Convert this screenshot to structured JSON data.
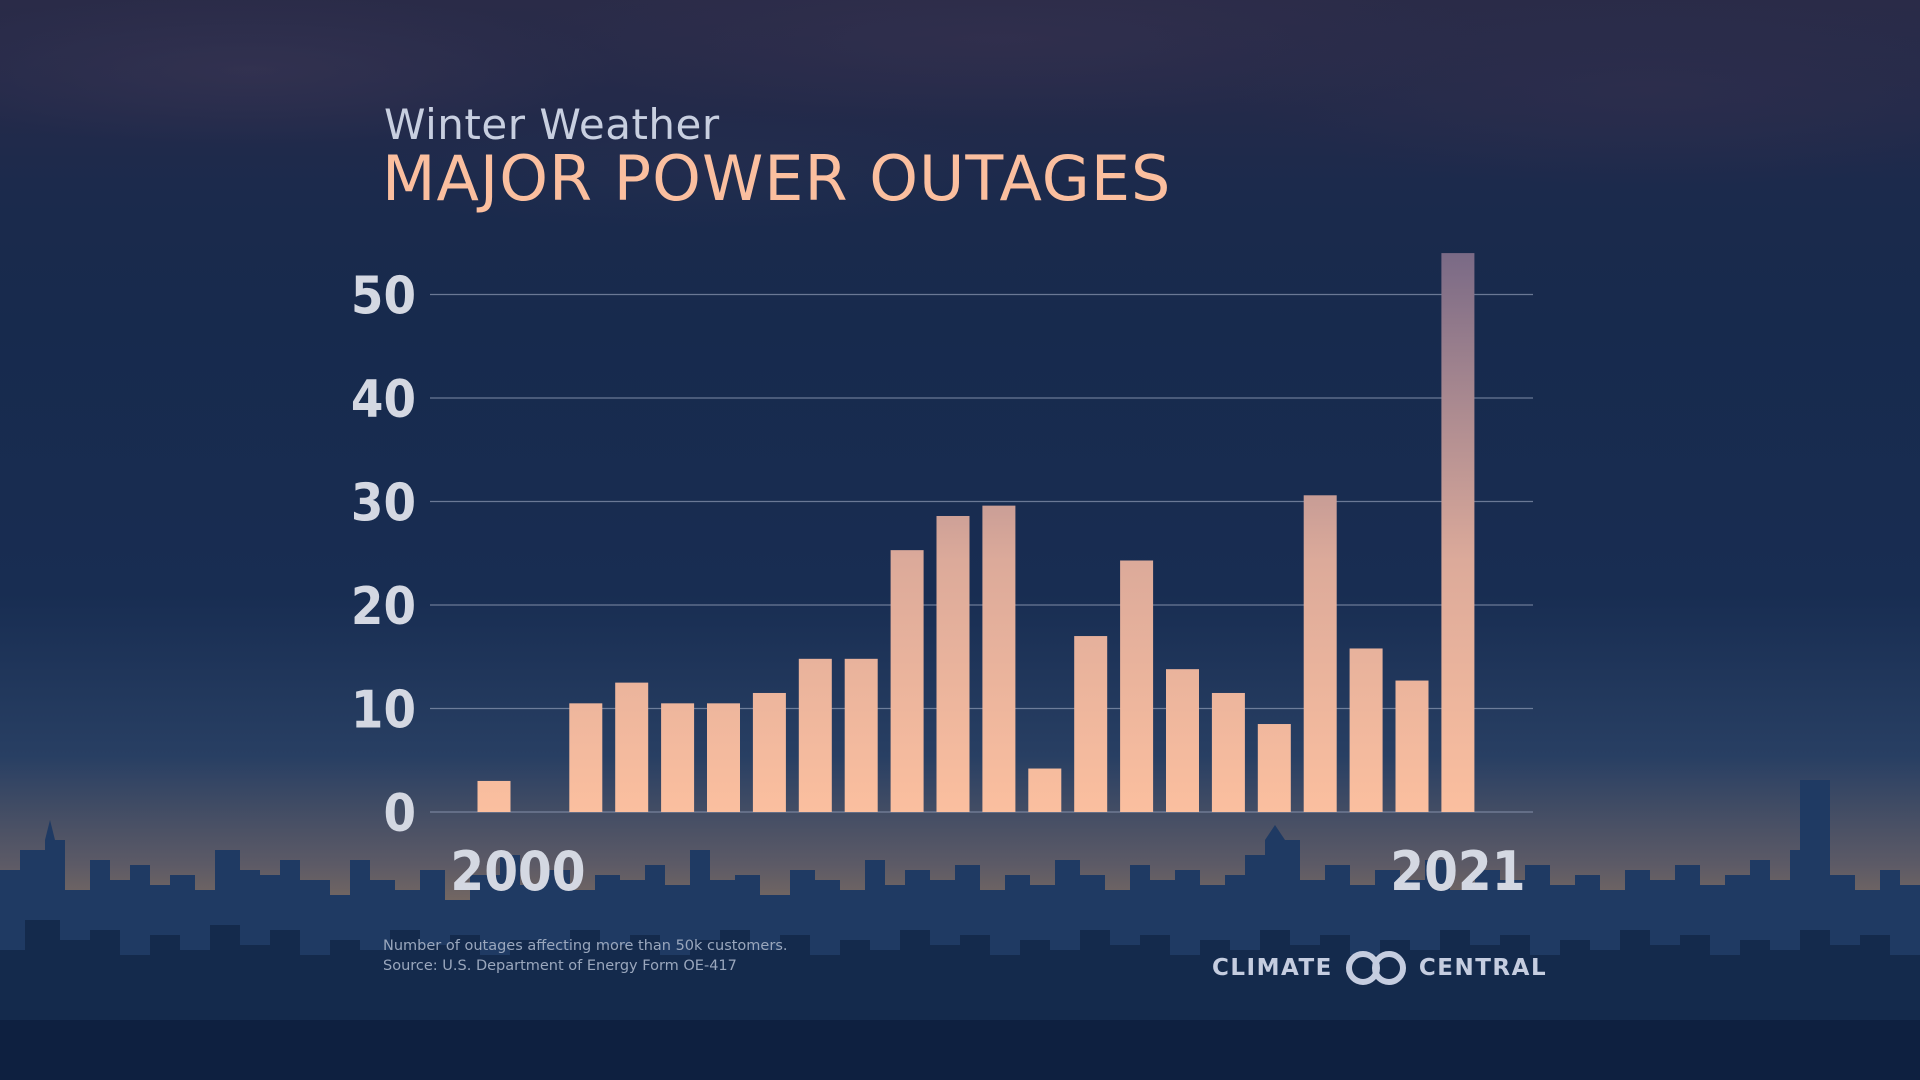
{
  "title": "Winter Weather",
  "subtitle": "MAJOR POWER OUTAGES",
  "footnote": {
    "line1": "Number of outages affecting more than 50k customers.",
    "line2": "Source: U.S. Department of Energy Form OE-417"
  },
  "logo": {
    "left_text": "CLIMATE",
    "right_text": "CENTRAL",
    "icon": "climate-central-rings-icon"
  },
  "colors": {
    "bar_bottom": "#fbbf9f",
    "bar_top": "#7a6a86",
    "title_accent": "#fbbf9f",
    "gridline": "#8d9ab4"
  },
  "chart_data": {
    "type": "bar",
    "categories": [
      "2000",
      "2001",
      "2002",
      "2003",
      "2004",
      "2005",
      "2006",
      "2007",
      "2008",
      "2009",
      "2010",
      "2011",
      "2012",
      "2013",
      "2014",
      "2015",
      "2016",
      "2017",
      "2018",
      "2019",
      "2020",
      "2021"
    ],
    "values": [
      3,
      0,
      10.5,
      12.5,
      10.5,
      10.5,
      11.5,
      14.8,
      14.8,
      25.3,
      28.6,
      29.6,
      4.2,
      17,
      24.3,
      13.8,
      11.5,
      8.5,
      30.6,
      15.8,
      12.7,
      54
    ],
    "x_tick_labels": [
      "2000",
      "2021"
    ],
    "y_ticks": [
      0,
      10,
      20,
      30,
      40,
      50
    ],
    "ylim": [
      0,
      54
    ],
    "grid": true,
    "legend": "none",
    "xlabel": "",
    "ylabel": ""
  }
}
